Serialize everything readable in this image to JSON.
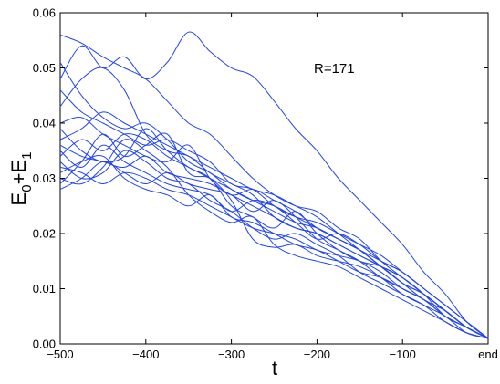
{
  "chart_data": {
    "type": "line",
    "title": "",
    "xlabel": "t",
    "ylabel_parts": [
      "E",
      "0",
      "+E",
      "1"
    ],
    "annotation": "R=171",
    "xlim": [
      -500,
      0
    ],
    "ylim": [
      0,
      0.06
    ],
    "x_ticks": [
      {
        "value": -500,
        "label": "−500"
      },
      {
        "value": -400,
        "label": "−400"
      },
      {
        "value": -300,
        "label": "−300"
      },
      {
        "value": -200,
        "label": "−200"
      },
      {
        "value": -100,
        "label": "−100"
      },
      {
        "value": 0,
        "label": "end"
      }
    ],
    "y_ticks": [
      {
        "value": 0,
        "label": "0.00"
      },
      {
        "value": 0.01,
        "label": "0.01"
      },
      {
        "value": 0.02,
        "label": "0.02"
      },
      {
        "value": 0.03,
        "label": "0.03"
      },
      {
        "value": 0.04,
        "label": "0.04"
      },
      {
        "value": 0.05,
        "label": "0.05"
      },
      {
        "value": 0.06,
        "label": "0.06"
      }
    ],
    "grid": false,
    "line_color": "#2244ee",
    "x": [
      -500,
      -475,
      -450,
      -425,
      -400,
      -375,
      -350,
      -325,
      -300,
      -275,
      -250,
      -225,
      -200,
      -175,
      -150,
      -125,
      -100,
      -75,
      -50,
      -25,
      0
    ],
    "series": [
      {
        "values": [
          0.056,
          0.0545,
          0.052,
          0.05,
          0.048,
          0.044,
          0.04,
          0.038,
          0.034,
          0.03,
          0.027,
          0.025,
          0.024,
          0.021,
          0.019,
          0.015,
          0.012,
          0.009,
          0.006,
          0.003,
          0.001
        ]
      },
      {
        "values": [
          0.048,
          0.054,
          0.05,
          0.052,
          0.048,
          0.051,
          0.0565,
          0.053,
          0.05,
          0.0485,
          0.044,
          0.039,
          0.035,
          0.03,
          0.026,
          0.022,
          0.018,
          0.013,
          0.009,
          0.004,
          0.001
        ]
      },
      {
        "values": [
          0.051,
          0.045,
          0.041,
          0.039,
          0.04,
          0.037,
          0.033,
          0.031,
          0.028,
          0.026,
          0.025,
          0.023,
          0.021,
          0.019,
          0.017,
          0.015,
          0.013,
          0.01,
          0.007,
          0.004,
          0.001
        ]
      },
      {
        "values": [
          0.043,
          0.048,
          0.05,
          0.046,
          0.038,
          0.035,
          0.034,
          0.031,
          0.029,
          0.027,
          0.023,
          0.021,
          0.02,
          0.018,
          0.016,
          0.014,
          0.011,
          0.008,
          0.006,
          0.003,
          0.001
        ]
      },
      {
        "values": [
          0.04,
          0.041,
          0.038,
          0.036,
          0.034,
          0.033,
          0.036,
          0.03,
          0.027,
          0.028,
          0.026,
          0.024,
          0.021,
          0.019,
          0.017,
          0.014,
          0.011,
          0.009,
          0.006,
          0.003,
          0.001
        ]
      },
      {
        "values": [
          0.039,
          0.035,
          0.033,
          0.034,
          0.039,
          0.035,
          0.032,
          0.03,
          0.025,
          0.023,
          0.021,
          0.024,
          0.02,
          0.017,
          0.015,
          0.014,
          0.012,
          0.009,
          0.005,
          0.003,
          0.001
        ]
      },
      {
        "values": [
          0.035,
          0.032,
          0.036,
          0.033,
          0.031,
          0.029,
          0.028,
          0.027,
          0.024,
          0.026,
          0.025,
          0.022,
          0.019,
          0.02,
          0.018,
          0.015,
          0.013,
          0.01,
          0.007,
          0.004,
          0.001
        ]
      },
      {
        "values": [
          0.033,
          0.03,
          0.031,
          0.035,
          0.033,
          0.03,
          0.029,
          0.026,
          0.024,
          0.021,
          0.019,
          0.02,
          0.018,
          0.016,
          0.013,
          0.011,
          0.009,
          0.007,
          0.004,
          0.002,
          0.001
        ]
      },
      {
        "values": [
          0.031,
          0.033,
          0.034,
          0.03,
          0.028,
          0.027,
          0.025,
          0.027,
          0.023,
          0.022,
          0.02,
          0.018,
          0.017,
          0.015,
          0.013,
          0.012,
          0.01,
          0.008,
          0.005,
          0.003,
          0.001
        ]
      },
      {
        "values": [
          0.03,
          0.029,
          0.032,
          0.037,
          0.035,
          0.032,
          0.027,
          0.024,
          0.022,
          0.023,
          0.018,
          0.016,
          0.015,
          0.014,
          0.012,
          0.01,
          0.008,
          0.006,
          0.004,
          0.002,
          0.001
        ]
      },
      {
        "values": [
          0.029,
          0.033,
          0.038,
          0.034,
          0.036,
          0.038,
          0.031,
          0.03,
          0.026,
          0.019,
          0.0175,
          0.018,
          0.016,
          0.015,
          0.014,
          0.012,
          0.009,
          0.007,
          0.005,
          0.002,
          0.001
        ]
      },
      {
        "values": [
          0.036,
          0.034,
          0.033,
          0.032,
          0.034,
          0.031,
          0.03,
          0.029,
          0.027,
          0.025,
          0.023,
          0.021,
          0.02,
          0.018,
          0.016,
          0.014,
          0.012,
          0.009,
          0.006,
          0.003,
          0.001
        ]
      },
      {
        "values": [
          0.034,
          0.037,
          0.035,
          0.038,
          0.037,
          0.034,
          0.032,
          0.03,
          0.028,
          0.026,
          0.024,
          0.022,
          0.021,
          0.019,
          0.017,
          0.014,
          0.011,
          0.008,
          0.006,
          0.003,
          0.001
        ]
      },
      {
        "values": [
          0.032,
          0.031,
          0.029,
          0.031,
          0.03,
          0.028,
          0.027,
          0.025,
          0.023,
          0.021,
          0.02,
          0.019,
          0.017,
          0.016,
          0.015,
          0.013,
          0.01,
          0.008,
          0.005,
          0.003,
          0.001
        ]
      },
      {
        "values": [
          0.037,
          0.039,
          0.042,
          0.04,
          0.038,
          0.036,
          0.034,
          0.032,
          0.03,
          0.028,
          0.027,
          0.025,
          0.023,
          0.02,
          0.017,
          0.014,
          0.011,
          0.009,
          0.006,
          0.003,
          0.001
        ]
      },
      {
        "values": [
          0.028,
          0.03,
          0.033,
          0.031,
          0.029,
          0.031,
          0.029,
          0.028,
          0.027,
          0.024,
          0.026,
          0.023,
          0.019,
          0.017,
          0.015,
          0.012,
          0.01,
          0.008,
          0.005,
          0.003,
          0.001
        ]
      },
      {
        "values": [
          0.046,
          0.042,
          0.04,
          0.038,
          0.036,
          0.037,
          0.035,
          0.033,
          0.029,
          0.028,
          0.025,
          0.023,
          0.022,
          0.02,
          0.018,
          0.016,
          0.013,
          0.01,
          0.007,
          0.004,
          0.001
        ]
      }
    ]
  }
}
